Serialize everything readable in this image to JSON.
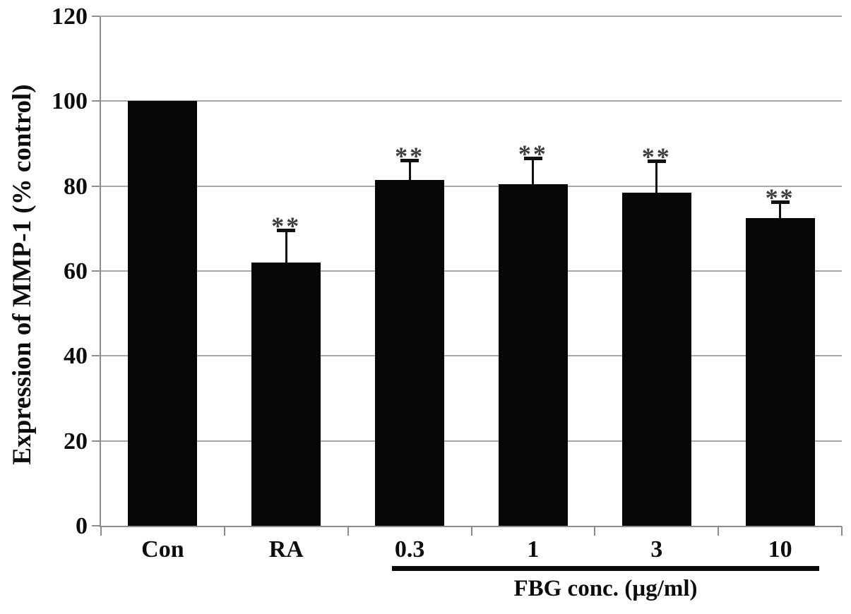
{
  "chart_data": {
    "type": "bar",
    "title": "",
    "categories": [
      "Con",
      "RA",
      "0.3",
      "1",
      "3",
      "10"
    ],
    "values": [
      100,
      62,
      81.5,
      80.5,
      78.5,
      72.5
    ],
    "errors_plus": [
      0,
      8,
      5,
      6.5,
      7.8,
      4.2
    ],
    "significance": [
      "",
      "**",
      "**",
      "**",
      "**",
      "**"
    ],
    "ylabel": "Expression of MMP-1 (% control)",
    "xlabel": "",
    "group_label": "FBG conc. (µg/ml)",
    "group_categories": [
      "0.3",
      "1",
      "3",
      "10"
    ],
    "yticks": [
      0,
      20,
      40,
      60,
      80,
      100,
      120
    ],
    "ylim": [
      0,
      120
    ],
    "grid": "horizontal",
    "legend": "none",
    "bar_color": "#060606",
    "grid_color": "#a6a6a6",
    "axis_color": "#8c8c8c",
    "significance_color": "#3d3d3d"
  }
}
